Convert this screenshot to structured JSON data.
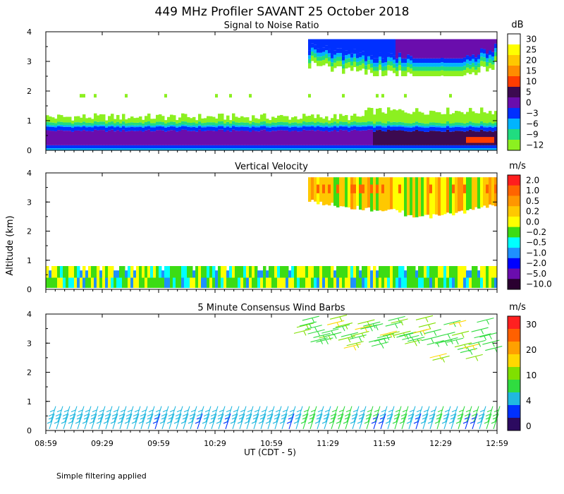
{
  "title": "449 MHz Profiler SAVANT 25 October 2018",
  "footnote": "Simple filtering applied",
  "ylabel": "Altitude (km)",
  "xlabel": "UT  (CDT - 5)",
  "time_ticks": [
    "08:59",
    "09:29",
    "09:59",
    "10:29",
    "10:59",
    "11:29",
    "11:59",
    "12:29",
    "12:59"
  ],
  "altitude_ticks": [
    "0",
    "1",
    "2",
    "3",
    "4"
  ],
  "chart_data": [
    {
      "type": "heatmap",
      "title": "Signal to Noise Ratio",
      "units": "dB",
      "x_range": [
        "08:59",
        "12:59"
      ],
      "ylim": [
        0,
        4
      ],
      "colorbar_labels": [
        "30",
        "25",
        "20",
        "15",
        "10",
        "5",
        "0",
        "−3",
        "−6",
        "−9",
        "−12"
      ],
      "colorbar_colors": [
        "#ffffff",
        "#ffff00",
        "#ffc800",
        "#ff8c00",
        "#ff3c00",
        "#3c0a50",
        "#6a0dad",
        "#0030ff",
        "#00b4ff",
        "#20dc80",
        "#8cf020"
      ]
    },
    {
      "type": "heatmap",
      "title": "Vertical Velocity",
      "units": "m/s",
      "x_range": [
        "08:59",
        "12:59"
      ],
      "ylim": [
        0,
        4
      ],
      "colorbar_labels": [
        "2.0",
        "1.0",
        "0.5",
        "0.2",
        "0.0",
        "−0.2",
        "−0.5",
        "−1.0",
        "−2.0",
        "−5.0",
        "−10.0"
      ],
      "colorbar_colors": [
        "#ff1e1e",
        "#ff6400",
        "#ff9600",
        "#ffc800",
        "#ffff00",
        "#3cdc14",
        "#00ffff",
        "#1e90ff",
        "#0000ff",
        "#6a0dad",
        "#2a0030"
      ]
    },
    {
      "type": "wind_barbs",
      "title": "5 Minute Consensus Wind Barbs",
      "units": "m/s",
      "x_range": [
        "08:59",
        "12:59"
      ],
      "ylim": [
        0,
        4
      ],
      "colorbar_labels": [
        "30",
        "20",
        "10",
        "4",
        "0"
      ],
      "colorbar_colors": [
        "#ff2020",
        "#ff6000",
        "#ffa000",
        "#ffd800",
        "#80e000",
        "#30dc40",
        "#20b8e0",
        "#0030ff",
        "#2c0a60"
      ]
    }
  ]
}
